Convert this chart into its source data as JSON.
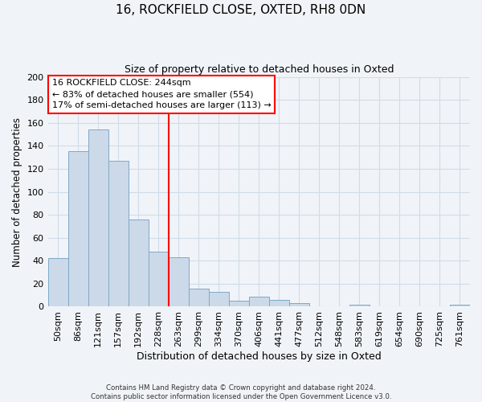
{
  "title": "16, ROCKFIELD CLOSE, OXTED, RH8 0DN",
  "subtitle": "Size of property relative to detached houses in Oxted",
  "xlabel": "Distribution of detached houses by size in Oxted",
  "ylabel": "Number of detached properties",
  "bar_labels": [
    "50sqm",
    "86sqm",
    "121sqm",
    "157sqm",
    "192sqm",
    "228sqm",
    "263sqm",
    "299sqm",
    "334sqm",
    "370sqm",
    "406sqm",
    "441sqm",
    "477sqm",
    "512sqm",
    "548sqm",
    "583sqm",
    "619sqm",
    "654sqm",
    "690sqm",
    "725sqm",
    "761sqm"
  ],
  "bar_values": [
    42,
    135,
    154,
    127,
    76,
    48,
    43,
    16,
    13,
    5,
    9,
    6,
    3,
    0,
    0,
    2,
    0,
    0,
    0,
    0,
    2
  ],
  "bar_color": "#ccd9e8",
  "bar_edge_color": "#7fa8c8",
  "vline_x_index": 6.0,
  "vline_color": "red",
  "annotation_text": "16 ROCKFIELD CLOSE: 244sqm\n← 83% of detached houses are smaller (554)\n17% of semi-detached houses are larger (113) →",
  "annotation_box_color": "white",
  "annotation_box_edge_color": "red",
  "ylim": [
    0,
    200
  ],
  "yticks": [
    0,
    20,
    40,
    60,
    80,
    100,
    120,
    140,
    160,
    180,
    200
  ],
  "footer_line1": "Contains HM Land Registry data © Crown copyright and database right 2024.",
  "footer_line2": "Contains public sector information licensed under the Open Government Licence v3.0.",
  "grid_color": "#d0dce8",
  "background_color": "#f0f4f8",
  "fig_width": 6.0,
  "fig_height": 5.0,
  "fig_dpi": 100
}
